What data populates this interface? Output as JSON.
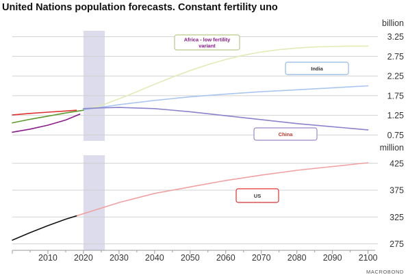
{
  "title": "United Nations population forecasts.  Constant fertility uno",
  "footer_logo": "MACROBOND",
  "colors": {
    "grid": "#d0d0d0",
    "shade": "#dcdcec",
    "axis_text": "#333333"
  },
  "chart_data": [
    {
      "type": "line",
      "panel": "top",
      "unit_label": "billion",
      "ylim": [
        0.6,
        3.4
      ],
      "yticks": [
        0.75,
        1.25,
        1.75,
        2.25,
        2.75,
        3.25
      ],
      "ytick_labels": [
        "0.75",
        "1.25",
        "1.75",
        "2.25",
        "2.75",
        "3.25"
      ],
      "xlim": [
        2000,
        2102
      ],
      "grid": true,
      "shaded_period": [
        2020,
        2026
      ],
      "series": [
        {
          "name": "Africa - low fertility variant",
          "color": "#e3eab6",
          "label_color": "#8a1a8a",
          "label_box_color": "#b9c98a",
          "x": [
            2020,
            2025,
            2030,
            2035,
            2040,
            2045,
            2050,
            2055,
            2060,
            2065,
            2070,
            2075,
            2080,
            2085,
            2090,
            2095,
            2100
          ],
          "values": [
            1.4,
            1.5,
            1.67,
            1.85,
            2.04,
            2.22,
            2.39,
            2.54,
            2.67,
            2.78,
            2.86,
            2.92,
            2.96,
            2.99,
            3.0,
            3.01,
            3.01
          ]
        },
        {
          "name": "India",
          "color": "#a9c6ef",
          "label_color": "#333333",
          "label_box_color": "#8fb8e0",
          "x": [
            2020,
            2030,
            2040,
            2050,
            2060,
            2070,
            2080,
            2090,
            2100
          ],
          "values": [
            1.39,
            1.52,
            1.63,
            1.72,
            1.79,
            1.85,
            1.9,
            1.95,
            2.0
          ]
        },
        {
          "name": "China",
          "color": "#8a82cc",
          "label_color": "#c0392b",
          "label_box_color": "#9a88c8",
          "x": [
            2020,
            2025,
            2030,
            2040,
            2050,
            2060,
            2070,
            2080,
            2090,
            2100
          ],
          "values": [
            1.42,
            1.44,
            1.45,
            1.42,
            1.34,
            1.24,
            1.14,
            1.04,
            0.96,
            0.88
          ]
        },
        {
          "name": "historical red",
          "color": "#e03030",
          "x": [
            2000,
            2005,
            2010,
            2015,
            2018
          ],
          "values": [
            1.26,
            1.3,
            1.33,
            1.36,
            1.38
          ]
        },
        {
          "name": "historical green",
          "color": "#5a9a2a",
          "x": [
            2000,
            2005,
            2010,
            2015,
            2020
          ],
          "values": [
            1.06,
            1.15,
            1.23,
            1.31,
            1.38
          ]
        },
        {
          "name": "historical purple",
          "color": "#8a1a8a",
          "x": [
            2000,
            2005,
            2010,
            2015,
            2019
          ],
          "values": [
            0.82,
            0.9,
            1.0,
            1.13,
            1.28
          ]
        }
      ],
      "labels": [
        {
          "series": 0,
          "lines": [
            "Africa - low fertility",
            "variant"
          ]
        },
        {
          "series": 1,
          "lines": [
            "India"
          ]
        },
        {
          "series": 2,
          "lines": [
            "China"
          ]
        }
      ]
    },
    {
      "type": "line",
      "panel": "bottom",
      "unit_label": "million",
      "ylim": [
        263,
        440
      ],
      "yticks": [
        275,
        325,
        375,
        425
      ],
      "ytick_labels": [
        "275",
        "325",
        "375",
        "425"
      ],
      "xlim": [
        2000,
        2102
      ],
      "grid": true,
      "shaded_period": [
        2020,
        2026
      ],
      "xticks": [
        2010,
        2020,
        2030,
        2040,
        2050,
        2060,
        2070,
        2080,
        2090,
        2100
      ],
      "xtick_labels": [
        "2010",
        "2020",
        "2030",
        "2040",
        "2050",
        "2060",
        "2070",
        "2080",
        "2090",
        "2100"
      ],
      "series": [
        {
          "name": "US",
          "color": "#f0a0a0",
          "label_color": "#333333",
          "label_box_color": "#e03030",
          "x": [
            2018,
            2030,
            2040,
            2050,
            2060,
            2070,
            2080,
            2090,
            2100
          ],
          "values": [
            327,
            352,
            369,
            381,
            393,
            403,
            412,
            419,
            426
          ]
        },
        {
          "name": "US historical",
          "color": "#111111",
          "x": [
            2000,
            2005,
            2010,
            2015,
            2018
          ],
          "values": [
            282,
            296,
            309,
            321,
            327
          ]
        }
      ],
      "labels": [
        {
          "series": 0,
          "lines": [
            "US"
          ]
        }
      ]
    }
  ]
}
